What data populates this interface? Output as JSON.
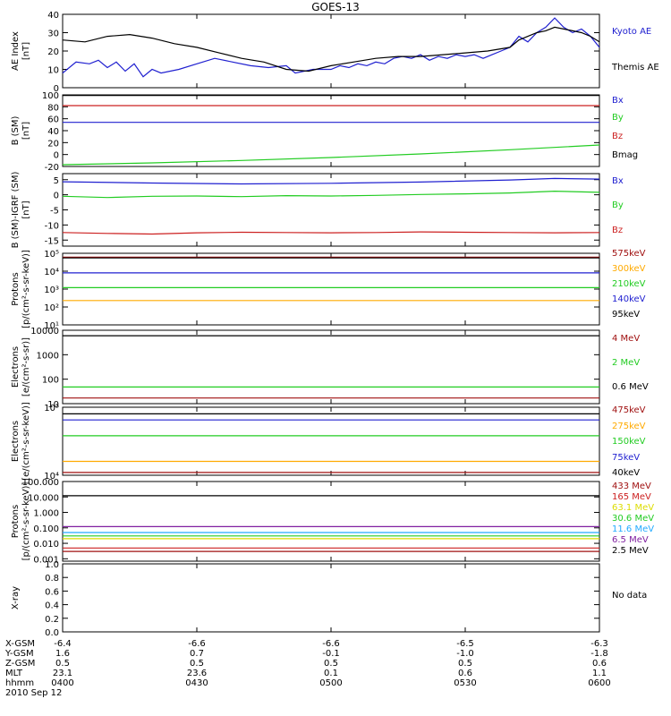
{
  "title": "GOES-13",
  "date": "2010 Sep 12",
  "no_data_label": "No data",
  "colors": {
    "black": "#000000",
    "blue": "#2020d0",
    "green": "#22cc22",
    "red": "#cc2020",
    "darkred": "#a01010",
    "orange": "#ffaa00",
    "cyan": "#22aaff",
    "purple": "#8020a0",
    "yellow": "#dddd00"
  },
  "chart_data": [
    {
      "type": "line",
      "panel": "ae",
      "ylabel": [
        "AE Index",
        "[nT]"
      ],
      "ylim": [
        0,
        40
      ],
      "scale": "linear",
      "ticks": [
        0,
        10,
        20,
        30,
        40
      ],
      "tick_labels": [
        "0",
        "10",
        "20",
        "30",
        "40"
      ],
      "series": [
        {
          "name": "Kyoto AE",
          "color": "blue",
          "x": [
            0,
            3,
            6,
            8,
            10,
            12,
            14,
            16,
            18,
            20,
            22,
            26,
            30,
            34,
            38,
            42,
            46,
            50,
            52,
            56,
            60,
            62,
            64,
            66,
            68,
            70,
            72,
            74,
            76,
            78,
            80,
            82,
            84,
            86,
            88,
            90,
            92,
            94,
            96,
            98,
            100,
            102,
            104,
            106,
            108,
            110,
            112,
            114,
            116,
            118,
            120
          ],
          "y": [
            8,
            14,
            13,
            15,
            11,
            14,
            9,
            13,
            6,
            10,
            8,
            10,
            13,
            16,
            14,
            12,
            11,
            12,
            8,
            10,
            10,
            12,
            11,
            13,
            12,
            14,
            13,
            16,
            17,
            16,
            18,
            15,
            17,
            16,
            18,
            17,
            18,
            16,
            18,
            20,
            22,
            28,
            25,
            30,
            33,
            38,
            33,
            30,
            32,
            28,
            22
          ]
        },
        {
          "name": "Themis AE",
          "color": "black",
          "x": [
            0,
            5,
            10,
            15,
            20,
            25,
            30,
            35,
            40,
            45,
            50,
            55,
            60,
            65,
            70,
            75,
            80,
            85,
            90,
            95,
            100,
            102,
            104,
            106,
            108,
            110,
            112,
            114,
            116,
            118,
            120
          ],
          "y": [
            26,
            25,
            28,
            29,
            27,
            24,
            22,
            19,
            16,
            14,
            10,
            9,
            12,
            14,
            16,
            17,
            17,
            18,
            19,
            20,
            22,
            26,
            28,
            30,
            31,
            33,
            32,
            31,
            30,
            28,
            25
          ]
        }
      ]
    },
    {
      "type": "line",
      "panel": "b_sm",
      "ylabel": [
        "B (SM)",
        "[nT]"
      ],
      "ylim": [
        -20,
        100
      ],
      "scale": "linear",
      "ticks": [
        -20,
        0,
        20,
        40,
        60,
        80,
        100
      ],
      "tick_labels": [
        "-20",
        "0",
        "20",
        "40",
        "60",
        "80",
        "100"
      ],
      "series": [
        {
          "name": "Bx",
          "color": "blue",
          "x": [
            0,
            120
          ],
          "y": [
            54,
            54
          ]
        },
        {
          "name": "By",
          "color": "green",
          "x": [
            0,
            20,
            40,
            60,
            80,
            100,
            120
          ],
          "y": [
            -17,
            -14,
            -10,
            -5,
            1,
            8,
            16
          ]
        },
        {
          "name": "Bz",
          "color": "red",
          "x": [
            0,
            120
          ],
          "y": [
            82,
            82
          ]
        },
        {
          "name": "Bmag",
          "color": "black",
          "x": [
            0,
            120
          ],
          "y": [
            99,
            99
          ]
        }
      ]
    },
    {
      "type": "line",
      "panel": "b_igrf",
      "ylabel": [
        "B (SM)-IGRF (SM)",
        "[nT]"
      ],
      "ylim": [
        -17,
        7
      ],
      "scale": "linear",
      "ticks": [
        -15,
        -10,
        -5,
        0,
        5
      ],
      "tick_labels": [
        "-15",
        "-10",
        "-5",
        "0",
        "5"
      ],
      "series": [
        {
          "name": "Bx",
          "color": "blue",
          "x": [
            0,
            20,
            40,
            60,
            80,
            100,
            110,
            120
          ],
          "y": [
            4.3,
            3.9,
            3.6,
            3.8,
            4.2,
            4.9,
            5.4,
            5.2
          ]
        },
        {
          "name": "By",
          "color": "green",
          "x": [
            0,
            10,
            20,
            30,
            40,
            50,
            60,
            70,
            80,
            90,
            100,
            110,
            120
          ],
          "y": [
            -0.5,
            -0.9,
            -0.5,
            -0.4,
            -0.6,
            -0.3,
            -0.4,
            -0.2,
            0.1,
            0.3,
            0.6,
            1.2,
            0.8
          ]
        },
        {
          "name": "Bz",
          "color": "red",
          "x": [
            0,
            10,
            20,
            30,
            40,
            50,
            60,
            70,
            80,
            90,
            100,
            110,
            120
          ],
          "y": [
            -12.5,
            -12.8,
            -13.0,
            -12.6,
            -12.4,
            -12.5,
            -12.6,
            -12.5,
            -12.3,
            -12.4,
            -12.5,
            -12.6,
            -12.5
          ]
        }
      ]
    },
    {
      "type": "line",
      "panel": "protons_low",
      "ylabel": [
        "Protons",
        "[p/(cm²-s-sr-keV)]"
      ],
      "ylim": [
        10,
        100000
      ],
      "scale": "log",
      "ticks": [
        10,
        100,
        1000,
        10000,
        100000
      ],
      "tick_labels": [
        "10¹",
        "10²",
        "10³",
        "10⁴",
        "10⁵"
      ],
      "series": [
        {
          "name": "575keV",
          "color": "darkred",
          "x": [
            0,
            120
          ],
          "y": [
            60000,
            60000
          ]
        },
        {
          "name": "300keV",
          "color": "orange",
          "x": [
            0,
            120
          ],
          "y": [
            230,
            230
          ]
        },
        {
          "name": "210keV",
          "color": "green",
          "x": [
            0,
            120
          ],
          "y": [
            1200,
            1200
          ]
        },
        {
          "name": "140keV",
          "color": "blue",
          "x": [
            0,
            120
          ],
          "y": [
            8000,
            8000
          ]
        },
        {
          "name": "95keV",
          "color": "black",
          "x": [
            0,
            120
          ],
          "y": [
            55000,
            55000
          ]
        }
      ]
    },
    {
      "type": "line",
      "panel": "electrons_mev",
      "ylabel": [
        "Electrons",
        "[e/(cm²-s-sr)]"
      ],
      "ylim": [
        10,
        10000
      ],
      "scale": "log",
      "ticks": [
        10,
        100,
        1000,
        10000
      ],
      "tick_labels": [
        "10",
        "100",
        "1000",
        "10000"
      ],
      "series": [
        {
          "name": "4 MeV",
          "color": "darkred",
          "x": [
            0,
            120
          ],
          "y": [
            17,
            17
          ]
        },
        {
          "name": "2 MeV",
          "color": "green",
          "x": [
            0,
            120
          ],
          "y": [
            48,
            48
          ]
        },
        {
          "name": "0.6 MeV",
          "color": "black",
          "x": [
            0,
            120
          ],
          "y": [
            6000,
            6000
          ]
        }
      ]
    },
    {
      "type": "line",
      "panel": "electrons_kev",
      "ylabel": [
        "Electrons",
        "[e/(cm²-s-sr-keV)]"
      ],
      "ylim": [
        10000,
        100000
      ],
      "scale": "log",
      "ticks": [
        10000,
        100000
      ],
      "tick_labels": [
        "10⁴",
        "10⁵"
      ],
      "series": [
        {
          "name": "475keV",
          "color": "darkred",
          "x": [
            0,
            120
          ],
          "y": [
            11000,
            11000
          ]
        },
        {
          "name": "275keV",
          "color": "orange",
          "x": [
            0,
            120
          ],
          "y": [
            16000,
            16000
          ]
        },
        {
          "name": "150keV",
          "color": "green",
          "x": [
            0,
            120
          ],
          "y": [
            38000,
            38000
          ]
        },
        {
          "name": "75keV",
          "color": "blue",
          "x": [
            0,
            120
          ],
          "y": [
            65000,
            65000
          ]
        },
        {
          "name": "40keV",
          "color": "black",
          "x": [
            0,
            120
          ],
          "y": [
            80000,
            80000
          ]
        }
      ]
    },
    {
      "type": "line",
      "panel": "protons_high",
      "ylabel": [
        "Protons",
        "[p/(cm²-s-sr-keV)]"
      ],
      "ylim": [
        0.0007,
        100
      ],
      "scale": "log",
      "ticks": [
        0.001,
        0.01,
        0.1,
        1,
        10,
        100
      ],
      "tick_labels": [
        "0.001",
        "0.010",
        "0.100",
        "1.000",
        "10.000",
        "100.000"
      ],
      "series": [
        {
          "name": "433 MeV",
          "color": "darkred",
          "x": [
            0,
            120
          ],
          "y": [
            0.003,
            0.003
          ]
        },
        {
          "name": "165 MeV",
          "color": "red",
          "x": [
            0,
            120
          ],
          "y": [
            0.005,
            0.005
          ]
        },
        {
          "name": "63.1 MeV",
          "color": "yellow",
          "x": [
            0,
            120
          ],
          "y": [
            0.02,
            0.02
          ]
        },
        {
          "name": "30.6 MeV",
          "color": "green",
          "x": [
            0,
            120
          ],
          "y": [
            0.03,
            0.03
          ]
        },
        {
          "name": "11.6 MeV",
          "color": "cyan",
          "x": [
            0,
            120
          ],
          "y": [
            0.05,
            0.05
          ]
        },
        {
          "name": "6.5 MeV",
          "color": "purple",
          "x": [
            0,
            120
          ],
          "y": [
            0.12,
            0.12
          ]
        },
        {
          "name": "2.5 MeV",
          "color": "black",
          "x": [
            0,
            120
          ],
          "y": [
            12,
            12
          ]
        }
      ]
    },
    {
      "type": "line",
      "panel": "xray",
      "ylabel": [
        "X-ray",
        ""
      ],
      "ylim": [
        0,
        1
      ],
      "scale": "linear",
      "ticks": [
        0,
        0.2,
        0.4,
        0.6,
        0.8,
        1.0
      ],
      "tick_labels": [
        "0.0",
        "0.2",
        "0.4",
        "0.6",
        "0.8",
        "1.0"
      ],
      "series": []
    }
  ],
  "x_axis": {
    "xlim": [
      0,
      120
    ],
    "rows": [
      {
        "label": "X-GSM",
        "values": [
          "-6.4",
          "-6.6",
          "-6.6",
          "-6.5",
          "-6.3"
        ]
      },
      {
        "label": "Y-GSM",
        "values": [
          "1.6",
          "0.7",
          "-0.1",
          "-1.0",
          "-1.8"
        ]
      },
      {
        "label": "Z-GSM",
        "values": [
          "0.5",
          "0.5",
          "0.5",
          "0.5",
          "0.6"
        ]
      },
      {
        "label": "MLT",
        "values": [
          "23.1",
          "23.6",
          "0.1",
          "0.6",
          "1.1"
        ]
      },
      {
        "label": "hhmm",
        "values": [
          "0400",
          "0430",
          "0500",
          "0530",
          "0600"
        ]
      }
    ],
    "tick_values": [
      0,
      30,
      60,
      90,
      120
    ]
  }
}
